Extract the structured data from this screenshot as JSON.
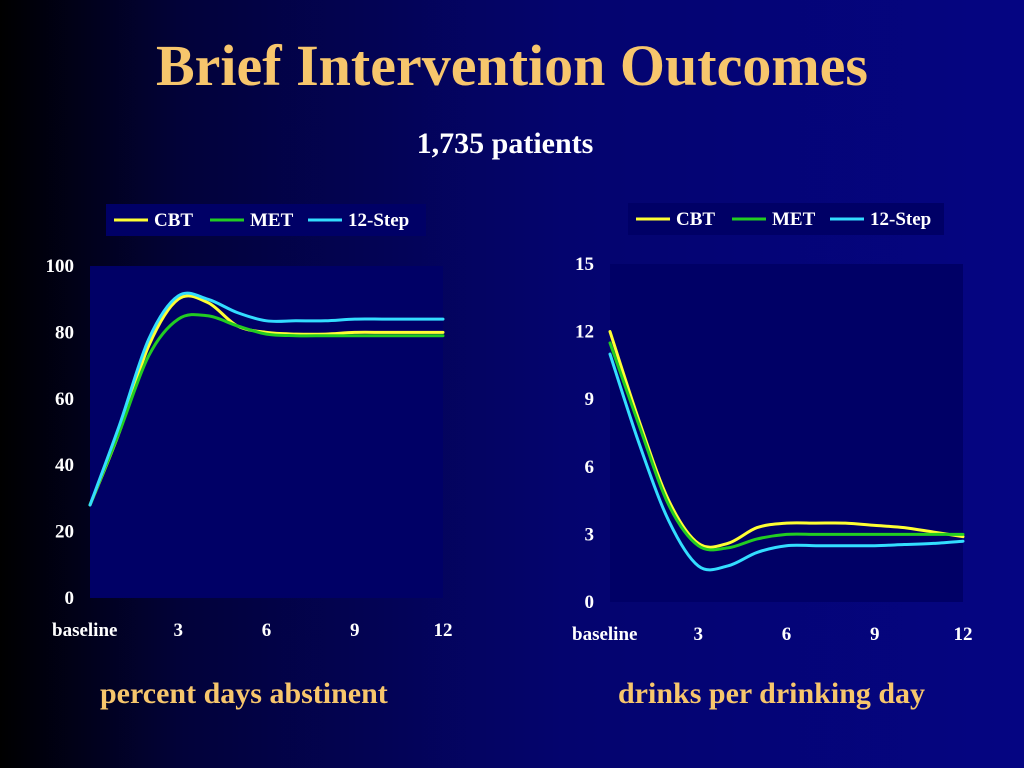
{
  "slide": {
    "title": "Brief Intervention Outcomes",
    "subtitle": "1,735 patients"
  },
  "colors": {
    "CBT": "#ffff33",
    "MET": "#22cc22",
    "12-Step": "#33ddff",
    "plot_bg": "#000066",
    "caption": "#f7c66c"
  },
  "chart_data": [
    {
      "type": "line",
      "caption": "percent days abstinent",
      "x": [
        0,
        1,
        2,
        3,
        4,
        5,
        6,
        7,
        8,
        9,
        10,
        11,
        12
      ],
      "tick_labels": [
        "baseline",
        "3",
        "6",
        "9",
        "12"
      ],
      "tick_positions": [
        0,
        3,
        6,
        9,
        12
      ],
      "ylim": [
        0,
        100
      ],
      "yticks": [
        0,
        20,
        40,
        60,
        80,
        100
      ],
      "legend": [
        "CBT",
        "MET",
        "12-Step"
      ],
      "series": [
        {
          "name": "CBT",
          "values": [
            28,
            50,
            76,
            90,
            89,
            82,
            80,
            79.5,
            79.5,
            80,
            80,
            80,
            80
          ]
        },
        {
          "name": "MET",
          "values": [
            28,
            50,
            73,
            84,
            85,
            82,
            79.5,
            79,
            79,
            79,
            79,
            79,
            79
          ]
        },
        {
          "name": "12-Step",
          "values": [
            28,
            52,
            78,
            91,
            90,
            86,
            83.5,
            83.5,
            83.5,
            84,
            84,
            84,
            84
          ]
        }
      ]
    },
    {
      "type": "line",
      "caption": "drinks per drinking day",
      "x": [
        0,
        1,
        2,
        3,
        4,
        5,
        6,
        7,
        8,
        9,
        10,
        11,
        12
      ],
      "tick_labels": [
        "baseline",
        "3",
        "6",
        "9",
        "12"
      ],
      "tick_positions": [
        0,
        3,
        6,
        9,
        12
      ],
      "ylim": [
        0,
        15
      ],
      "yticks": [
        0,
        3,
        6,
        9,
        12,
        15
      ],
      "legend": [
        "CBT",
        "MET",
        "12-Step"
      ],
      "series": [
        {
          "name": "CBT",
          "values": [
            12,
            8,
            4.5,
            2.6,
            2.6,
            3.3,
            3.5,
            3.5,
            3.5,
            3.4,
            3.3,
            3.1,
            2.9
          ]
        },
        {
          "name": "MET",
          "values": [
            11.5,
            7.8,
            4.3,
            2.5,
            2.4,
            2.8,
            3,
            3,
            3,
            3,
            3,
            3,
            3
          ]
        },
        {
          "name": "12-Step",
          "values": [
            11,
            7,
            3.6,
            1.6,
            1.6,
            2.2,
            2.5,
            2.5,
            2.5,
            2.5,
            2.55,
            2.6,
            2.7
          ]
        }
      ]
    }
  ]
}
